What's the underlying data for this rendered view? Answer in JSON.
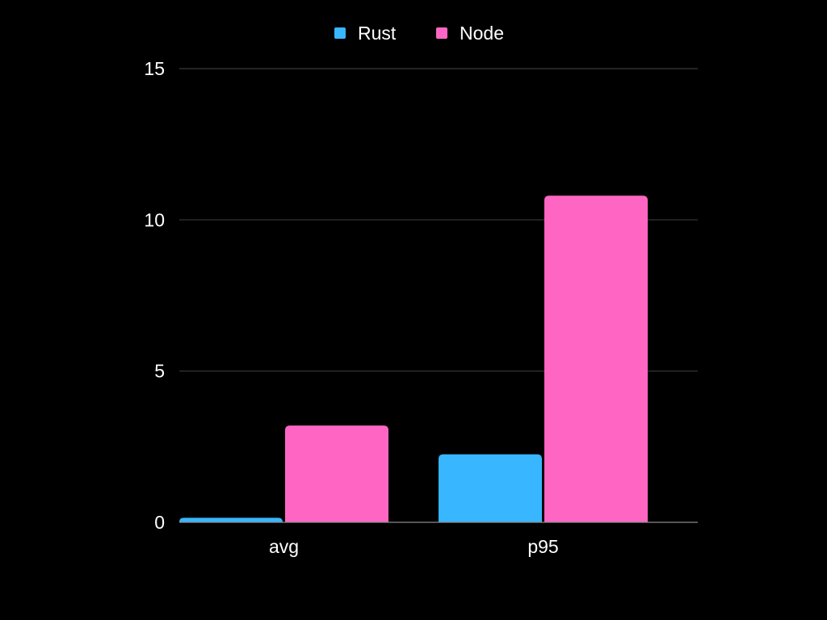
{
  "chart_data": {
    "type": "bar",
    "categories": [
      "avg",
      "p95"
    ],
    "series": [
      {
        "name": "Rust",
        "color": "#38b6ff",
        "values": [
          0.15,
          2.25
        ]
      },
      {
        "name": "Node",
        "color": "#ff66c4",
        "values": [
          3.2,
          10.8
        ]
      }
    ],
    "ylim": [
      0,
      15
    ],
    "yticks": [
      0,
      5,
      10,
      15
    ],
    "ytick_labels": [
      "0",
      "5",
      "10",
      "15"
    ],
    "grid": true,
    "legend_position": "top-center",
    "background": "#000000"
  }
}
